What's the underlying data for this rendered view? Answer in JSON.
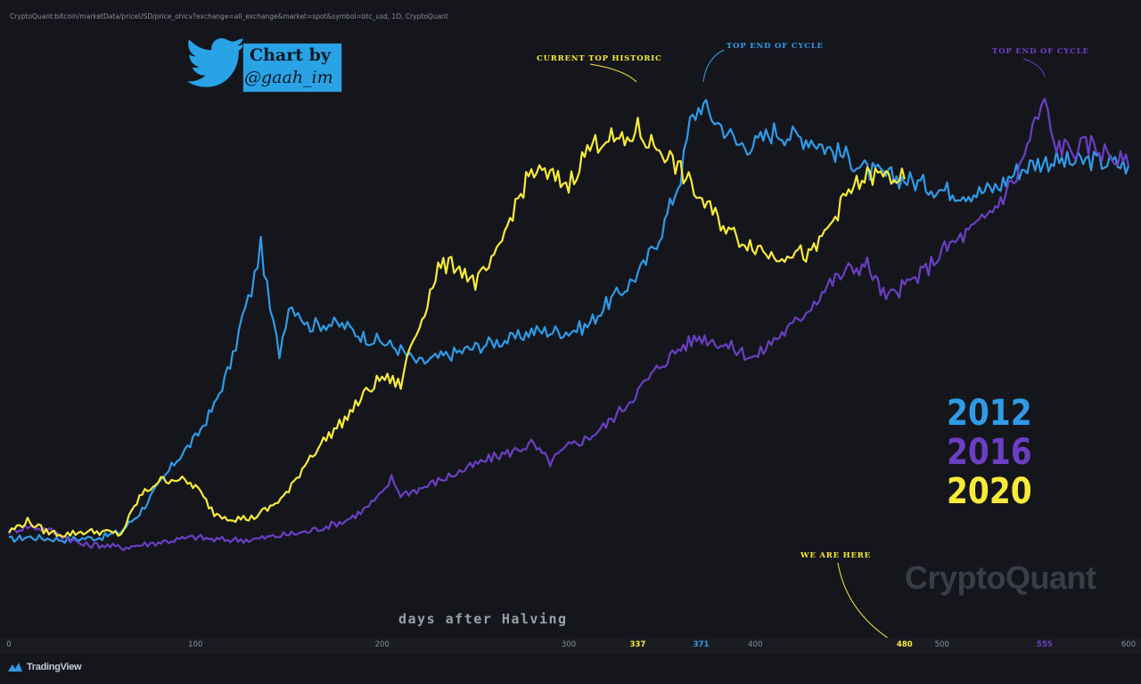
{
  "source_line": "CryptoQuant:bitcoin/marketData/priceUSD/price_ohlcv?exchange=all_exchange&market=spot&symbol=btc_usd, 1D, CryptoQuant",
  "badge": {
    "line1": "Chart by",
    "line2": "@gaah_im"
  },
  "annotations": {
    "current_top": "CURRENT TOP HISTORIC",
    "top_end_2012": "TOP END OF CYCLE",
    "top_end_2016": "TOP END OF CYCLE",
    "we_are_here": "WE ARE HERE"
  },
  "watermark": "CryptoQuant",
  "footer_brand": "TradingView",
  "colors": {
    "y2012": "#2f9be8",
    "y2016": "#6a3fc4",
    "y2020": "#f8ea3a",
    "background": "#15161c"
  },
  "chart_data": {
    "type": "line",
    "xlabel": "days after Halving",
    "ylabel": "",
    "xlim": [
      0,
      600
    ],
    "x_ticks": [
      "0",
      "100",
      "200",
      "300",
      "337",
      "371",
      "400",
      "480",
      "500",
      "555",
      "600"
    ],
    "highlighted_ticks": {
      "337": "y2020",
      "371": "y2012",
      "480": "y2020",
      "555": "y2016"
    },
    "grid": false,
    "legend_position": "right",
    "series": [
      {
        "name": "2012",
        "color_key": "y2012",
        "points": [
          [
            0,
            0.02
          ],
          [
            10,
            0.03
          ],
          [
            30,
            0.02
          ],
          [
            50,
            0.03
          ],
          [
            60,
            0.05
          ],
          [
            70,
            0.12
          ],
          [
            80,
            0.22
          ],
          [
            90,
            0.32
          ],
          [
            100,
            0.4
          ],
          [
            110,
            0.52
          ],
          [
            120,
            0.7
          ],
          [
            125,
            0.85
          ],
          [
            130,
            0.95
          ],
          [
            135,
            1.12
          ],
          [
            140,
            0.88
          ],
          [
            145,
            0.72
          ],
          [
            150,
            0.9
          ],
          [
            155,
            0.88
          ],
          [
            160,
            0.82
          ],
          [
            170,
            0.83
          ],
          [
            180,
            0.82
          ],
          [
            190,
            0.78
          ],
          [
            200,
            0.76
          ],
          [
            210,
            0.73
          ],
          [
            215,
            0.7
          ],
          [
            220,
            0.68
          ],
          [
            230,
            0.7
          ],
          [
            240,
            0.72
          ],
          [
            250,
            0.74
          ],
          [
            260,
            0.76
          ],
          [
            270,
            0.77
          ],
          [
            280,
            0.8
          ],
          [
            290,
            0.8
          ],
          [
            300,
            0.8
          ],
          [
            310,
            0.82
          ],
          [
            320,
            0.9
          ],
          [
            330,
            0.96
          ],
          [
            340,
            1.04
          ],
          [
            350,
            1.18
          ],
          [
            360,
            1.38
          ],
          [
            365,
            1.58
          ],
          [
            371,
            1.65
          ],
          [
            375,
            1.62
          ],
          [
            380,
            1.58
          ],
          [
            385,
            1.55
          ],
          [
            390,
            1.5
          ],
          [
            400,
            1.5
          ],
          [
            410,
            1.55
          ],
          [
            420,
            1.53
          ],
          [
            430,
            1.52
          ],
          [
            440,
            1.48
          ],
          [
            450,
            1.45
          ],
          [
            460,
            1.4
          ],
          [
            470,
            1.38
          ],
          [
            480,
            1.37
          ],
          [
            490,
            1.35
          ],
          [
            500,
            1.33
          ],
          [
            510,
            1.32
          ],
          [
            520,
            1.32
          ],
          [
            530,
            1.34
          ],
          [
            540,
            1.4
          ],
          [
            550,
            1.43
          ],
          [
            560,
            1.44
          ],
          [
            570,
            1.43
          ],
          [
            580,
            1.44
          ],
          [
            590,
            1.43
          ],
          [
            600,
            1.42
          ]
        ]
      },
      {
        "name": "2016",
        "color_key": "y2016",
        "points": [
          [
            0,
            0.05
          ],
          [
            10,
            0.07
          ],
          [
            20,
            0.06
          ],
          [
            30,
            0.03
          ],
          [
            40,
            0.0
          ],
          [
            50,
            0.0
          ],
          [
            60,
            -0.01
          ],
          [
            70,
            0.0
          ],
          [
            80,
            0.01
          ],
          [
            90,
            0.02
          ],
          [
            100,
            0.03
          ],
          [
            110,
            0.02
          ],
          [
            120,
            0.02
          ],
          [
            130,
            0.02
          ],
          [
            140,
            0.03
          ],
          [
            150,
            0.04
          ],
          [
            160,
            0.05
          ],
          [
            170,
            0.07
          ],
          [
            180,
            0.09
          ],
          [
            190,
            0.13
          ],
          [
            200,
            0.19
          ],
          [
            205,
            0.25
          ],
          [
            210,
            0.19
          ],
          [
            220,
            0.21
          ],
          [
            230,
            0.24
          ],
          [
            240,
            0.27
          ],
          [
            250,
            0.3
          ],
          [
            260,
            0.33
          ],
          [
            270,
            0.35
          ],
          [
            280,
            0.38
          ],
          [
            290,
            0.31
          ],
          [
            300,
            0.37
          ],
          [
            310,
            0.4
          ],
          [
            320,
            0.45
          ],
          [
            330,
            0.52
          ],
          [
            340,
            0.6
          ],
          [
            350,
            0.68
          ],
          [
            360,
            0.74
          ],
          [
            370,
            0.78
          ],
          [
            380,
            0.76
          ],
          [
            390,
            0.73
          ],
          [
            400,
            0.7
          ],
          [
            410,
            0.77
          ],
          [
            420,
            0.82
          ],
          [
            430,
            0.9
          ],
          [
            440,
            0.98
          ],
          [
            450,
            1.03
          ],
          [
            460,
            1.05
          ],
          [
            470,
            0.92
          ],
          [
            480,
            0.97
          ],
          [
            490,
            1.02
          ],
          [
            500,
            1.1
          ],
          [
            510,
            1.15
          ],
          [
            520,
            1.2
          ],
          [
            530,
            1.28
          ],
          [
            540,
            1.38
          ],
          [
            550,
            1.58
          ],
          [
            555,
            1.66
          ],
          [
            560,
            1.5
          ],
          [
            570,
            1.48
          ],
          [
            580,
            1.5
          ],
          [
            590,
            1.46
          ],
          [
            600,
            1.42
          ]
        ]
      },
      {
        "name": "2020",
        "color_key": "y2020",
        "points": [
          [
            0,
            0.05
          ],
          [
            10,
            0.09
          ],
          [
            20,
            0.05
          ],
          [
            30,
            0.04
          ],
          [
            40,
            0.05
          ],
          [
            50,
            0.05
          ],
          [
            60,
            0.04
          ],
          [
            70,
            0.18
          ],
          [
            80,
            0.24
          ],
          [
            90,
            0.25
          ],
          [
            100,
            0.22
          ],
          [
            110,
            0.12
          ],
          [
            120,
            0.1
          ],
          [
            130,
            0.1
          ],
          [
            140,
            0.14
          ],
          [
            150,
            0.2
          ],
          [
            160,
            0.32
          ],
          [
            170,
            0.4
          ],
          [
            180,
            0.47
          ],
          [
            190,
            0.56
          ],
          [
            200,
            0.63
          ],
          [
            210,
            0.6
          ],
          [
            215,
            0.74
          ],
          [
            220,
            0.82
          ],
          [
            230,
            1.04
          ],
          [
            240,
            1.05
          ],
          [
            250,
            0.98
          ],
          [
            260,
            1.06
          ],
          [
            270,
            1.25
          ],
          [
            280,
            1.4
          ],
          [
            290,
            1.38
          ],
          [
            300,
            1.35
          ],
          [
            310,
            1.48
          ],
          [
            320,
            1.53
          ],
          [
            330,
            1.5
          ],
          [
            337,
            1.56
          ],
          [
            340,
            1.52
          ],
          [
            350,
            1.48
          ],
          [
            360,
            1.4
          ],
          [
            370,
            1.3
          ],
          [
            380,
            1.22
          ],
          [
            390,
            1.15
          ],
          [
            400,
            1.12
          ],
          [
            410,
            1.08
          ],
          [
            420,
            1.1
          ],
          [
            430,
            1.08
          ],
          [
            440,
            1.2
          ],
          [
            450,
            1.32
          ],
          [
            460,
            1.38
          ],
          [
            470,
            1.38
          ],
          [
            480,
            1.37
          ]
        ]
      }
    ]
  }
}
